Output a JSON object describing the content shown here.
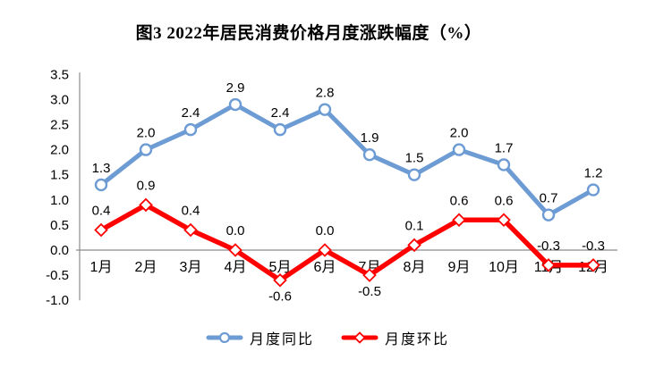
{
  "title": "图3  2022年居民消费价格月度涨跌幅度（%）",
  "chart_data": {
    "type": "line",
    "categories": [
      "1月",
      "2月",
      "3月",
      "4月",
      "5月",
      "6月",
      "7月",
      "8月",
      "9月",
      "10月",
      "11月",
      "12月"
    ],
    "series": [
      {
        "name": "月度同比",
        "color": "#6D9BD4",
        "marker": "circle",
        "values": [
          1.3,
          2.0,
          2.4,
          2.9,
          2.4,
          2.8,
          1.9,
          1.5,
          2.0,
          1.7,
          0.7,
          1.2
        ],
        "label_below_indices": []
      },
      {
        "name": "月度环比",
        "color": "#FF0000",
        "marker": "diamond",
        "values": [
          0.4,
          0.9,
          0.4,
          0.0,
          -0.6,
          0.0,
          -0.5,
          0.1,
          0.6,
          0.6,
          -0.3,
          -0.3
        ],
        "label_below_indices": [
          4,
          6
        ]
      }
    ],
    "ylim": [
      -1.0,
      3.5
    ],
    "ytick_step": 0.5,
    "ytick_labels": [
      "3.5",
      "3.0",
      "2.5",
      "2.0",
      "1.5",
      "1.0",
      "0.5",
      "0.0",
      "-0.5",
      "-1.0"
    ],
    "grid": false,
    "legend_position": "bottom",
    "axis_color": "#8C8C8C",
    "label_color": "#000000"
  }
}
